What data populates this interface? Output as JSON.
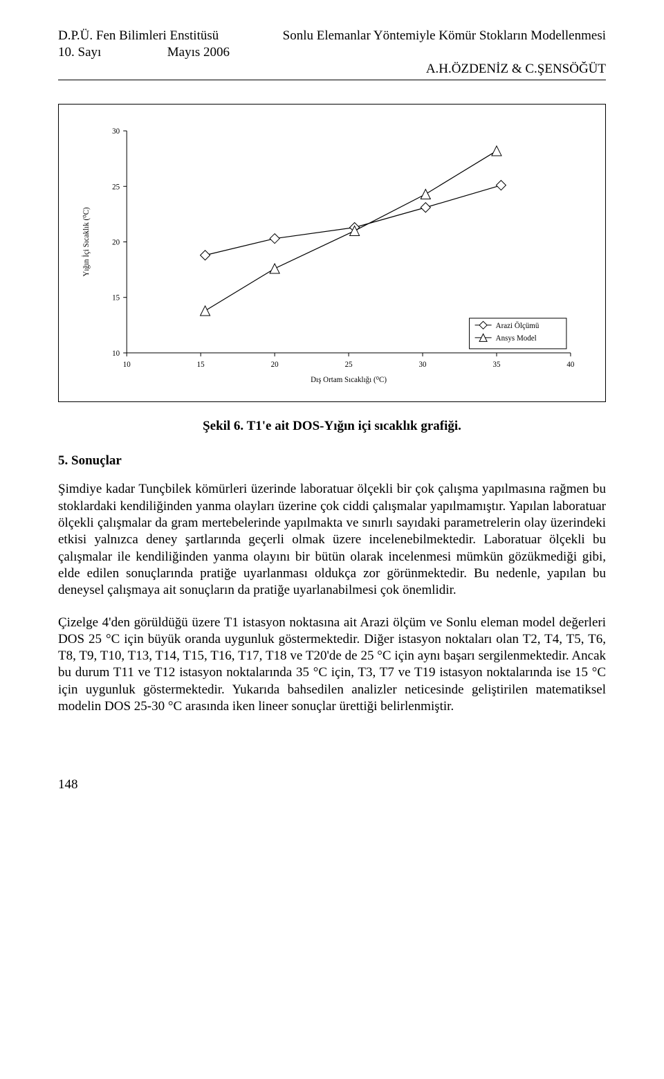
{
  "header": {
    "left1": "D.P.Ü. Fen Bilimleri Enstitüsü",
    "left2_a": "10. Sayı",
    "left2_b": "Mayıs 2006",
    "right1": "Sonlu Elemanlar Yöntemiyle Kömür Stokların Modellenmesi",
    "right2": "A.H.ÖZDENİZ & C.ŞENSÖĞÜT"
  },
  "chart": {
    "type": "line",
    "xlabel": "Dış Ortam Sıcaklığı (⁰C)",
    "ylabel": "Yığın İçi Sıcaklık (⁰C)",
    "xlim": [
      10,
      40
    ],
    "ylim": [
      10,
      30
    ],
    "xtick_step": 5,
    "ytick_step": 5,
    "xticks": [
      10,
      15,
      20,
      25,
      30,
      35,
      40
    ],
    "yticks": [
      10,
      15,
      20,
      25,
      30
    ],
    "tick_fontsize": 11,
    "axis_label_fontsize": 11,
    "background_color": "#ffffff",
    "axis_color": "#000000",
    "grid": false,
    "line_color": "#000000",
    "line_width": 1.2,
    "marker_size": 7,
    "marker_fill": "#ffffff",
    "marker_stroke": "#000000",
    "legend": {
      "position": "lower-right-inside",
      "border": true,
      "items": [
        {
          "label": "Arazi Ölçümü",
          "marker": "diamond"
        },
        {
          "label": "Ansys Model",
          "marker": "triangle"
        }
      ],
      "fontsize": 11
    },
    "series": [
      {
        "name": "Arazi Ölçümü",
        "marker": "diamond",
        "points": [
          {
            "x": 15.3,
            "y": 18.8
          },
          {
            "x": 20.0,
            "y": 20.3
          },
          {
            "x": 25.4,
            "y": 21.3
          },
          {
            "x": 30.2,
            "y": 23.1
          },
          {
            "x": 35.3,
            "y": 25.1
          }
        ]
      },
      {
        "name": "Ansys Model",
        "marker": "triangle",
        "points": [
          {
            "x": 15.3,
            "y": 13.8
          },
          {
            "x": 20.0,
            "y": 17.6
          },
          {
            "x": 25.4,
            "y": 21.0
          },
          {
            "x": 30.2,
            "y": 24.3
          },
          {
            "x": 35.0,
            "y": 28.2
          }
        ]
      }
    ]
  },
  "caption": "Şekil 6. T1'e ait DOS-Yığın içi sıcaklık grafiği.",
  "section_title": "5. Sonuçlar",
  "para1": "Şimdiye kadar Tunçbilek kömürleri üzerinde laboratuar ölçekli bir çok çalışma yapılmasına rağmen bu stoklardaki kendiliğinden yanma olayları üzerine çok ciddi çalışmalar yapılmamıştır. Yapılan laboratuar ölçekli çalışmalar da gram mertebelerinde yapılmakta ve sınırlı sayıdaki parametrelerin olay üzerindeki etkisi yalnızca deney şartlarında geçerli olmak üzere incelenebilmektedir. Laboratuar ölçekli bu çalışmalar ile kendiliğinden yanma olayını bir bütün olarak incelenmesi mümkün gözükmediği gibi, elde edilen sonuçlarında pratiğe uyarlanması oldukça zor görünmektedir. Bu nedenle, yapılan bu deneysel çalışmaya ait sonuçların da pratiğe uyarlanabilmesi çok önemlidir.",
  "para2": "Çizelge 4'den görüldüğü üzere T1 istasyon noktasına ait Arazi ölçüm ve Sonlu eleman model değerleri DOS 25 °C için büyük oranda uygunluk göstermektedir. Diğer istasyon noktaları olan T2, T4, T5, T6, T8, T9, T10, T13, T14, T15, T16, T17, T18 ve T20'de de 25 °C için aynı başarı sergilenmektedir. Ancak bu durum T11 ve T12 istasyon noktalarında 35 °C için, T3, T7 ve T19 istasyon noktalarında ise 15 °C için uygunluk göstermektedir. Yukarıda bahsedilen analizler neticesinde geliştirilen matematiksel modelin DOS 25-30 °C arasında iken lineer sonuçlar ürettiği belirlenmiştir.",
  "page_num": "148"
}
